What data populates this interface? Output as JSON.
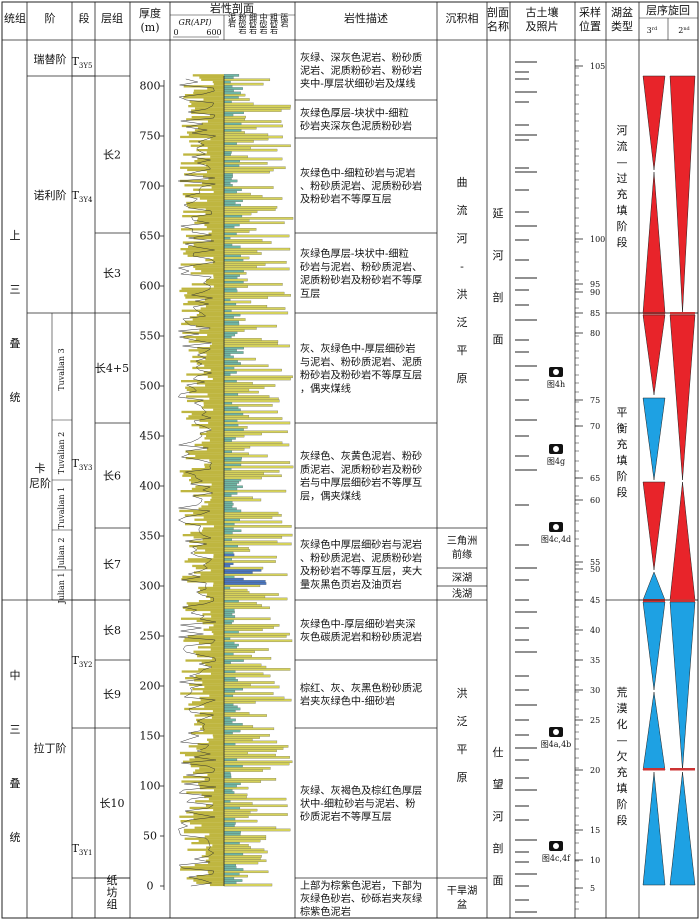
{
  "headers": {
    "system": "统组",
    "stage": "阶",
    "section": "段",
    "member": "层组",
    "thickness": "厚度",
    "thickness_unit": "(m)",
    "lithology": "岩性剖面",
    "gr": "GR(API)",
    "gr_min": "0",
    "gr_max": "600",
    "lith_legend": [
      "泥岩",
      "粉砂岩",
      "细砂岩",
      "中砂岩",
      "粗砂岩",
      "砾岩"
    ],
    "description": "岩性描述",
    "facies": "沉积相",
    "profile": "剖面名称",
    "paleosol": "古土壤及照片",
    "sample": "采样位置",
    "lake": "湖盆类型",
    "sequence": "层序旋回",
    "seq3": "3rd",
    "seq2": "2nd"
  },
  "systems": [
    "上三叠统",
    "中三叠统"
  ],
  "stages": [
    "瑞替阶",
    "诺利阶",
    "卡尼阶",
    "拉丁阶"
  ],
  "substages": [
    "Tuvalian 3",
    "Tuvalian 2",
    "Tuvalian 1",
    "Julian 2",
    "Julian 1"
  ],
  "sections": [
    "T3Y5",
    "T3Y4",
    "T3Y3",
    "T3Y2",
    "T3Y1"
  ],
  "members": [
    "长2",
    "长3",
    "长4+5",
    "长6",
    "长7",
    "长8",
    "长9",
    "长10",
    "纸坊组"
  ],
  "thickness_ticks": [
    0,
    50,
    100,
    150,
    200,
    250,
    300,
    350,
    400,
    450,
    500,
    550,
    600,
    650,
    700,
    750,
    800
  ],
  "descriptions": [
    "灰绿、深灰色泥岩、粉砂质泥岩、泥质粉砂岩、粉砂岩夹中-厚层状细砂岩及煤线",
    "灰绿色厚层-块状中-细粒砂岩夹深灰色泥质粉砂岩",
    "灰绿色中-细粒砂岩与泥岩、粉砂质泥岩、泥质粉砂岩及粉砂岩不等厚互层",
    "灰绿色厚层-块状中-细粒砂岩与泥岩、粉砂质泥岩、泥质粉砂岩及粉砂岩不等厚互层",
    "灰、灰绿色中-厚层细砂岩与泥岩、粉砂质泥岩、泥质粉砂岩及粉砂岩不等厚互层，偶夹煤线",
    "灰绿色、灰黄色泥岩、粉砂质泥岩、泥质粉砂岩及粉砂岩与中厚层细砂岩不等厚互层，偶夹煤线",
    "灰绿色中厚层细砂岩与泥岩、粉砂质泥岩、泥质粉砂岩及粉砂岩不等厚互层，夹大量灰黑色页岩及油页岩",
    "灰绿色中-厚层细砂岩夹深灰色碳质泥岩和粉砂质泥岩",
    "棕红、灰、灰黑色粉砂质泥岩夹灰绿色中-细砂岩",
    "灰绿、灰褐色及棕红色厚层状中-细粒砂岩与泥岩、粉砂质泥岩不等厚互层",
    "上部为棕紫色泥岩，下部为灰绿色砂岩、砂砾岩夹灰绿棕紫色泥岩"
  ],
  "facies": [
    "曲流河-洪泛平原",
    "三角洲前缘",
    "深湖",
    "浅湖",
    "洪泛平原",
    "干旱湖盆"
  ],
  "profiles": [
    "延河剖面",
    "仕望河剖面"
  ],
  "photos": [
    "图4h",
    "图4g",
    "图4c,4d",
    "图4a,4b",
    "图4c,4f"
  ],
  "sample_labels": [
    "105",
    "100",
    "95",
    "90",
    "85",
    "80",
    "75",
    "70",
    "65",
    "60",
    "55",
    "50",
    "45",
    "40",
    "35",
    "30",
    "25",
    "20",
    "15",
    "10",
    "5"
  ],
  "lake_types": [
    "河流—过充填阶段",
    "平衡充填阶段",
    "荒漠化—欠充填阶段"
  ],
  "colors": {
    "red": "#e8242a",
    "blue": "#1ea1e3",
    "sand": "#d6d25a",
    "mud": "#6fb7a5",
    "shale": "#4a76c0"
  }
}
